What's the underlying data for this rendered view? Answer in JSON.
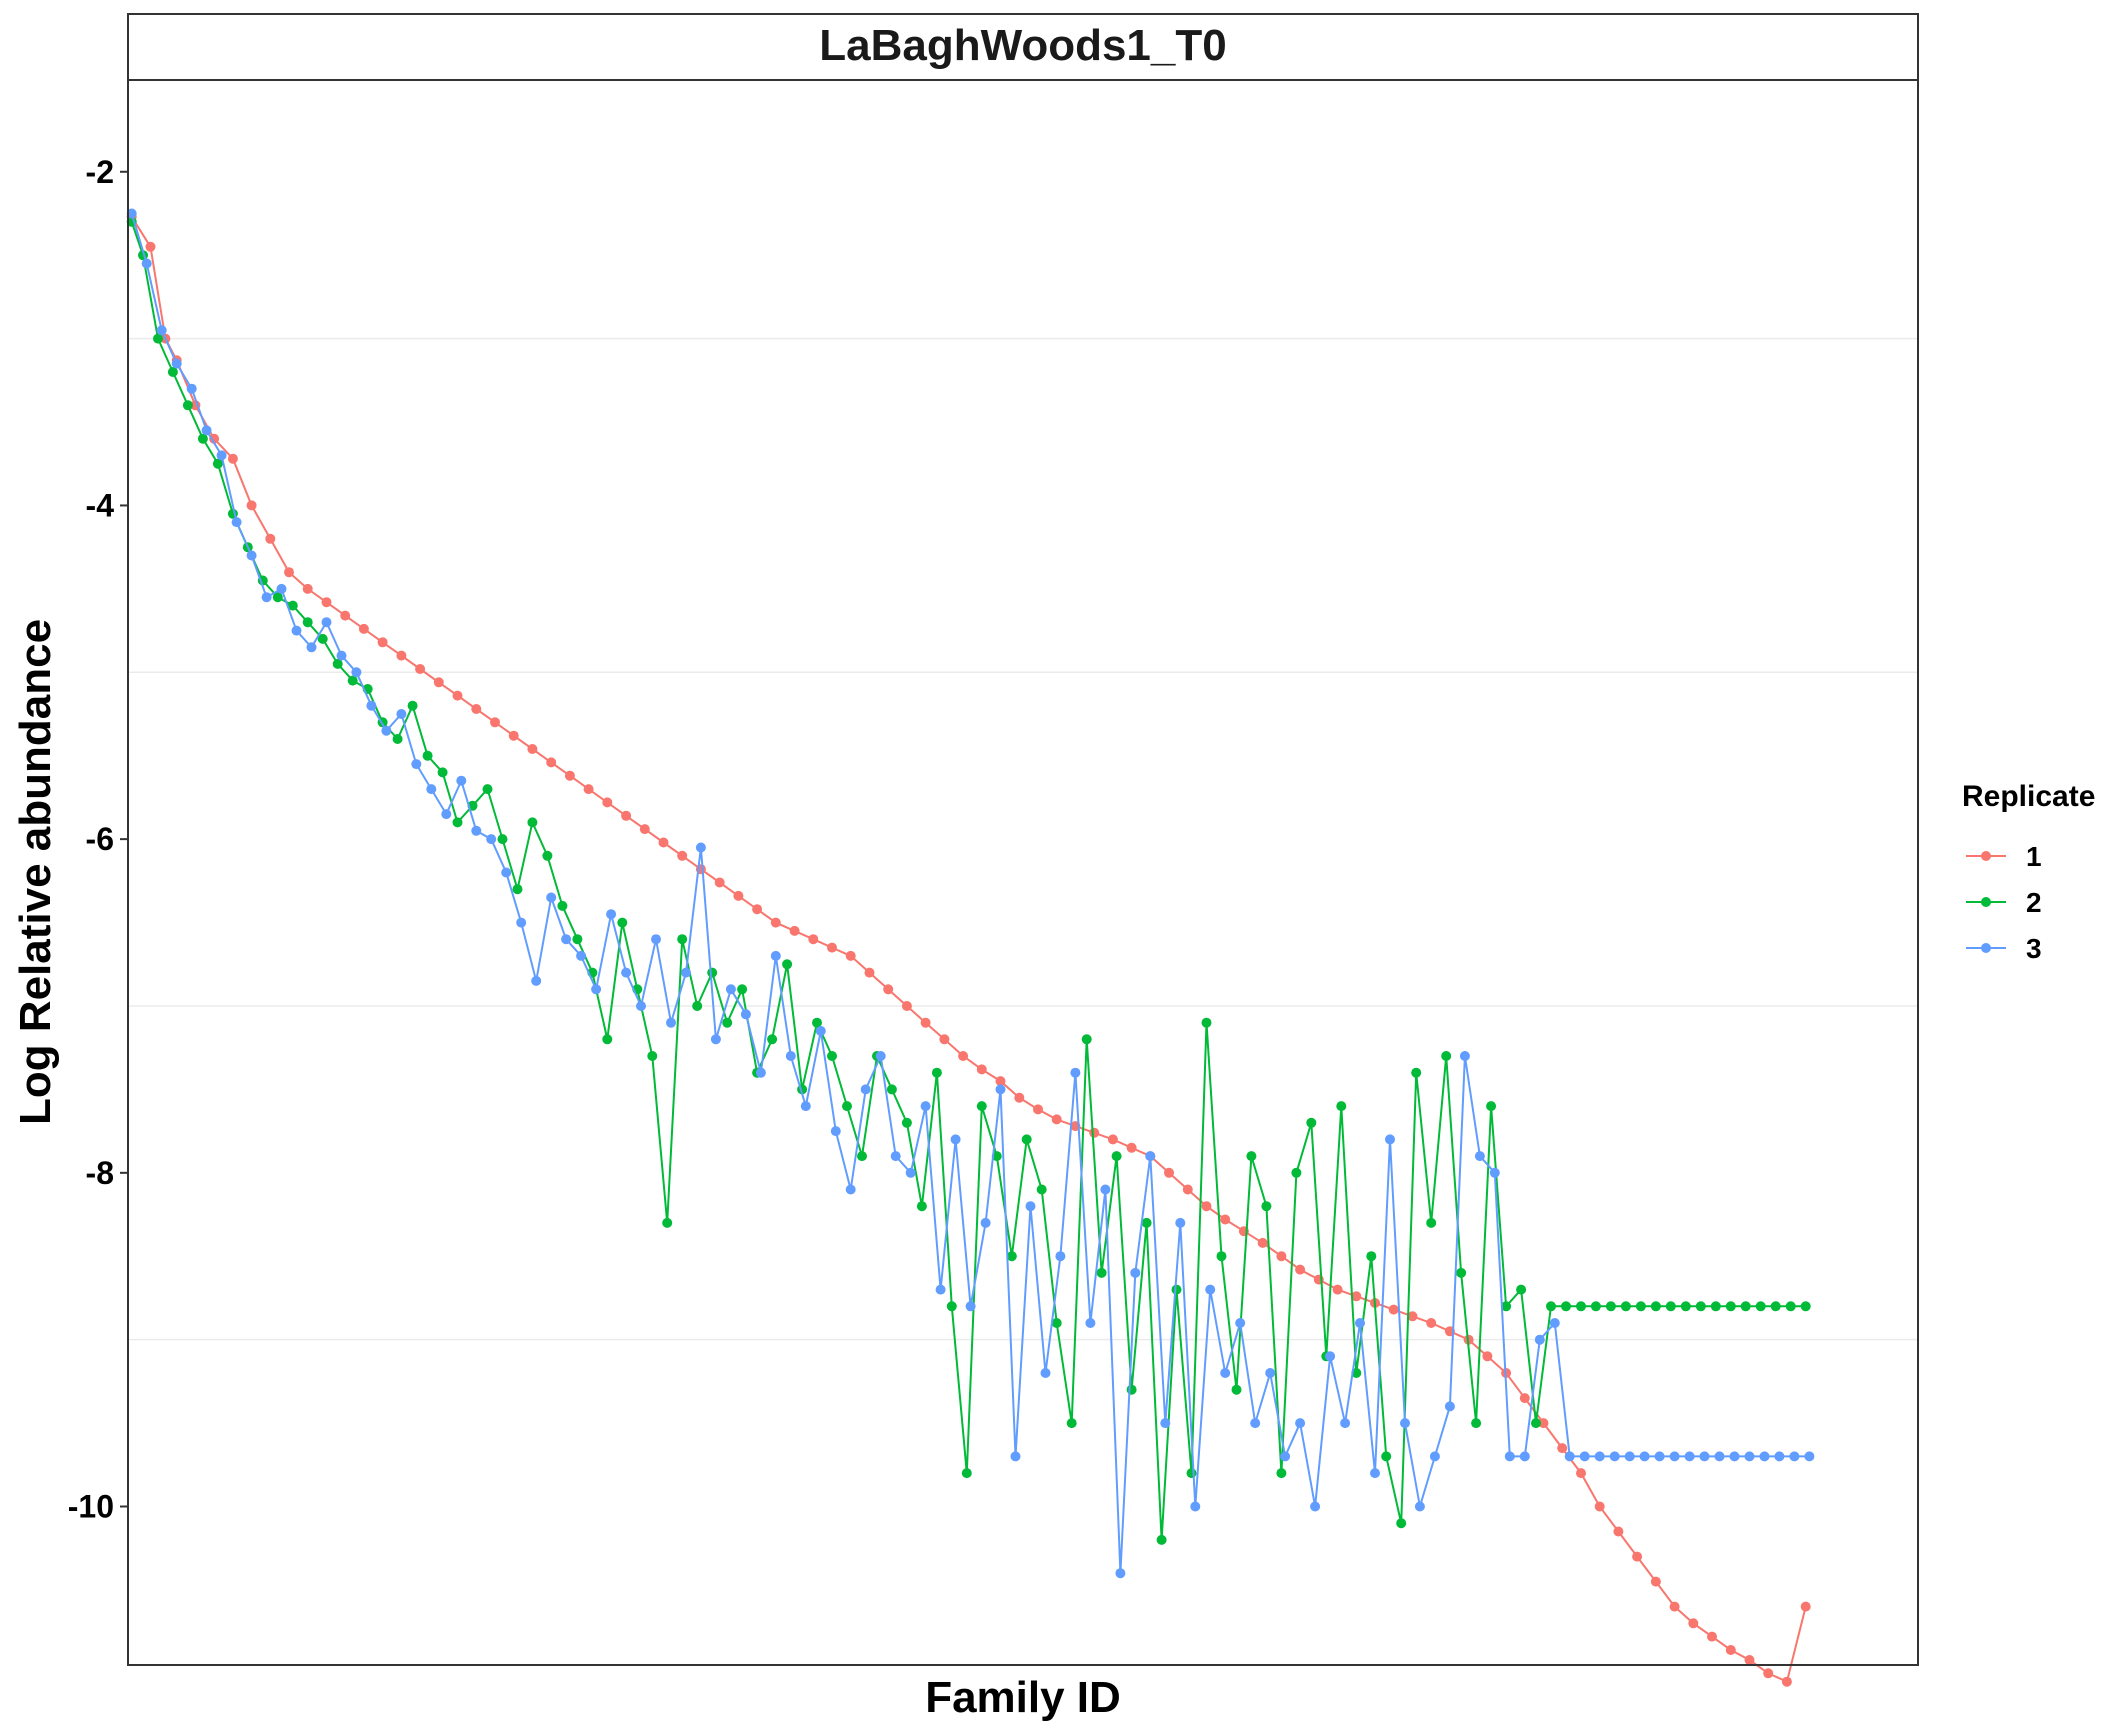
{
  "chart_data": {
    "type": "line",
    "title": "LaBaghWoods1_T0",
    "xlabel": "Family ID",
    "ylabel": "Log Relative abundance",
    "ylim": [
      -10.95,
      -1.45
    ],
    "yticks": [
      -2,
      -4,
      -6,
      -8,
      -10
    ],
    "x_tick_labels": "none",
    "grid": "horizontal, faint",
    "legend": {
      "title": "Replicate",
      "placement": "right",
      "entries": [
        "1",
        "2",
        "3"
      ]
    },
    "colors": {
      "1": "#F8766D",
      "2": "#00BA38",
      "3": "#619CFF"
    },
    "series": [
      {
        "name": "1",
        "color": "#F8766D",
        "x": [
          1,
          6,
          10,
          13,
          18,
          23,
          28,
          33,
          38,
          43,
          48,
          53,
          58,
          63,
          68,
          73,
          78,
          83,
          88,
          93,
          98,
          103,
          108,
          113,
          118,
          123,
          128,
          133,
          138,
          143,
          148,
          153,
          158,
          163,
          168,
          173,
          178,
          183,
          188,
          193,
          198,
          203,
          208,
          213,
          218,
          223,
          228,
          233,
          238,
          243,
          248,
          253,
          258,
          263,
          268,
          273,
          278,
          283,
          288,
          293,
          298,
          303,
          308,
          313,
          318,
          323,
          328,
          333,
          338,
          343,
          348,
          353,
          358,
          363,
          368,
          373,
          378,
          383,
          388,
          393,
          398,
          403,
          408,
          413,
          418,
          423,
          428,
          433,
          438,
          443,
          448
        ],
        "values": [
          -2.27,
          -2.45,
          -3.0,
          -3.13,
          -3.4,
          -3.6,
          -3.72,
          -4.0,
          -4.2,
          -4.4,
          -4.5,
          -4.58,
          -4.66,
          -4.74,
          -4.82,
          -4.9,
          -4.98,
          -5.06,
          -5.14,
          -5.22,
          -5.3,
          -5.38,
          -5.46,
          -5.54,
          -5.62,
          -5.7,
          -5.78,
          -5.86,
          -5.94,
          -6.02,
          -6.1,
          -6.18,
          -6.26,
          -6.34,
          -6.42,
          -6.5,
          -6.55,
          -6.6,
          -6.65,
          -6.7,
          -6.8,
          -6.9,
          -7.0,
          -7.1,
          -7.2,
          -7.3,
          -7.38,
          -7.45,
          -7.55,
          -7.62,
          -7.68,
          -7.72,
          -7.76,
          -7.8,
          -7.85,
          -7.9,
          -8.0,
          -8.1,
          -8.2,
          -8.28,
          -8.35,
          -8.42,
          -8.5,
          -8.58,
          -8.64,
          -8.7,
          -8.74,
          -8.78,
          -8.82,
          -8.86,
          -8.9,
          -8.95,
          -9.0,
          -9.1,
          -9.2,
          -9.35,
          -9.5,
          -9.65,
          -9.8,
          -10.0,
          -10.15,
          -10.3,
          -10.45,
          -10.6,
          -10.7,
          -10.78,
          -10.86,
          -10.92,
          -11.0,
          -11.05,
          -10.6
        ]
      },
      {
        "name": "2",
        "color": "#00BA38",
        "x": [
          1,
          4,
          8,
          12,
          16,
          20,
          24,
          28,
          32,
          36,
          40,
          44,
          48,
          52,
          56,
          60,
          64,
          68,
          72,
          76,
          80,
          84,
          88,
          92,
          96,
          100,
          104,
          108,
          112,
          116,
          120,
          124,
          128,
          132,
          136,
          140,
          144,
          148,
          152,
          156,
          160,
          164,
          168,
          172,
          176,
          180,
          184,
          188,
          192,
          196,
          200,
          204,
          208,
          212,
          216,
          220,
          224,
          228,
          232,
          236,
          240,
          244,
          248,
          252,
          256,
          260,
          264,
          268,
          272,
          276,
          280,
          284,
          288,
          292,
          296,
          300,
          304,
          308,
          312,
          316,
          320,
          324,
          328,
          332,
          336,
          340,
          344,
          348,
          352,
          356,
          360,
          364,
          368,
          372,
          376,
          380,
          384,
          388,
          392,
          396,
          400,
          404,
          408,
          412,
          416,
          420,
          424,
          428,
          432,
          436,
          440,
          444,
          448
        ],
        "values": [
          -2.3,
          -2.5,
          -3.0,
          -3.2,
          -3.4,
          -3.6,
          -3.75,
          -4.05,
          -4.25,
          -4.45,
          -4.55,
          -4.6,
          -4.7,
          -4.8,
          -4.95,
          -5.05,
          -5.1,
          -5.3,
          -5.4,
          -5.2,
          -5.5,
          -5.6,
          -5.9,
          -5.8,
          -5.7,
          -6.0,
          -6.3,
          -5.9,
          -6.1,
          -6.4,
          -6.6,
          -6.8,
          -7.2,
          -6.5,
          -6.9,
          -7.3,
          -8.3,
          -6.6,
          -7.0,
          -6.8,
          -7.1,
          -6.9,
          -7.4,
          -7.2,
          -6.75,
          -7.5,
          -7.1,
          -7.3,
          -7.6,
          -7.9,
          -7.3,
          -7.5,
          -7.7,
          -8.2,
          -7.4,
          -8.8,
          -9.8,
          -7.6,
          -7.9,
          -8.5,
          -7.8,
          -8.1,
          -8.9,
          -9.5,
          -7.2,
          -8.6,
          -7.9,
          -9.3,
          -8.3,
          -10.2,
          -8.7,
          -9.8,
          -7.1,
          -8.5,
          -9.3,
          -7.9,
          -8.2,
          -9.8,
          -8.0,
          -7.7,
          -9.1,
          -7.6,
          -9.2,
          -8.5,
          -9.7,
          -10.1,
          -7.4,
          -8.3,
          -7.3,
          -8.6,
          -9.5,
          -7.6,
          -8.8,
          -8.7,
          -9.5,
          -8.8,
          -8.8,
          -8.8,
          -8.8,
          -8.8,
          -8.8,
          -8.8,
          -8.8,
          -8.8,
          -8.8,
          -8.8,
          -8.8,
          -8.8,
          -8.8,
          -8.8,
          -8.8,
          -8.8,
          -8.8
        ]
      },
      {
        "name": "3",
        "color": "#619CFF",
        "x": [
          1,
          5,
          9,
          13,
          17,
          21,
          25,
          29,
          33,
          37,
          41,
          45,
          49,
          53,
          57,
          61,
          65,
          69,
          73,
          77,
          81,
          85,
          89,
          93,
          97,
          101,
          105,
          109,
          113,
          117,
          121,
          125,
          129,
          133,
          137,
          141,
          145,
          149,
          153,
          157,
          161,
          165,
          169,
          173,
          177,
          181,
          185,
          189,
          193,
          197,
          201,
          205,
          209,
          213,
          217,
          221,
          225,
          229,
          233,
          237,
          241,
          245,
          249,
          253,
          257,
          261,
          265,
          269,
          273,
          277,
          281,
          285,
          289,
          293,
          297,
          301,
          305,
          309,
          313,
          317,
          321,
          325,
          329,
          333,
          337,
          341,
          345,
          349,
          353,
          357,
          361,
          365,
          369,
          373,
          377,
          381,
          385,
          389,
          393,
          397,
          401,
          405,
          409,
          413,
          417,
          421,
          425,
          429,
          433,
          437,
          441,
          445,
          449
        ],
        "values": [
          -2.25,
          -2.55,
          -2.95,
          -3.15,
          -3.3,
          -3.55,
          -3.7,
          -4.1,
          -4.3,
          -4.55,
          -4.5,
          -4.75,
          -4.85,
          -4.7,
          -4.9,
          -5.0,
          -5.2,
          -5.35,
          -5.25,
          -5.55,
          -5.7,
          -5.85,
          -5.65,
          -5.95,
          -6.0,
          -6.2,
          -6.5,
          -6.85,
          -6.35,
          -6.6,
          -6.7,
          -6.9,
          -6.45,
          -6.8,
          -7.0,
          -6.6,
          -7.1,
          -6.8,
          -6.05,
          -7.2,
          -6.9,
          -7.05,
          -7.4,
          -6.7,
          -7.3,
          -7.6,
          -7.15,
          -7.75,
          -8.1,
          -7.5,
          -7.3,
          -7.9,
          -8.0,
          -7.6,
          -8.7,
          -7.8,
          -8.8,
          -8.3,
          -7.5,
          -9.7,
          -8.2,
          -9.2,
          -8.5,
          -7.4,
          -8.9,
          -8.1,
          -10.4,
          -8.6,
          -7.9,
          -9.5,
          -8.3,
          -10.0,
          -8.7,
          -9.2,
          -8.9,
          -9.5,
          -9.2,
          -9.7,
          -9.5,
          -10.0,
          -9.1,
          -9.5,
          -8.9,
          -9.8,
          -7.8,
          -9.5,
          -10.0,
          -9.7,
          -9.4,
          -7.3,
          -7.9,
          -8.0,
          -9.7,
          -9.7,
          -9.0,
          -8.9,
          -9.7,
          -9.7,
          -9.7,
          -9.7,
          -9.7,
          -9.7,
          -9.7,
          -9.7,
          -9.7,
          -9.7,
          -9.7,
          -9.7,
          -9.7,
          -9.7,
          -9.7,
          -9.7,
          -9.7
        ]
      }
    ]
  }
}
